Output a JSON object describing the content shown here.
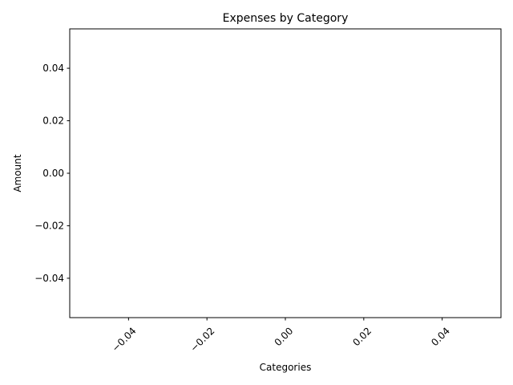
{
  "chart_data": {
    "type": "bar",
    "title": "Expenses by Category",
    "xlabel": "Categories",
    "ylabel": "Amount",
    "categories": [],
    "values": [],
    "xlim": [
      -0.055,
      0.055
    ],
    "ylim": [
      -0.055,
      0.055
    ],
    "x_ticks": [
      -0.04,
      -0.02,
      0.0,
      0.02,
      0.04
    ],
    "x_tick_labels": [
      "−0.04",
      "−0.02",
      "0.00",
      "0.02",
      "0.04"
    ],
    "x_tick_rotation_deg": 45,
    "y_ticks": [
      -0.04,
      -0.02,
      0.0,
      0.02,
      0.04
    ],
    "y_tick_labels": [
      "−0.04",
      "−0.02",
      "0.00",
      "0.02",
      "0.04"
    ],
    "grid": false,
    "legend": "none",
    "colors": {
      "axis": "#000000",
      "background": "#ffffff",
      "text": "#000000"
    }
  }
}
